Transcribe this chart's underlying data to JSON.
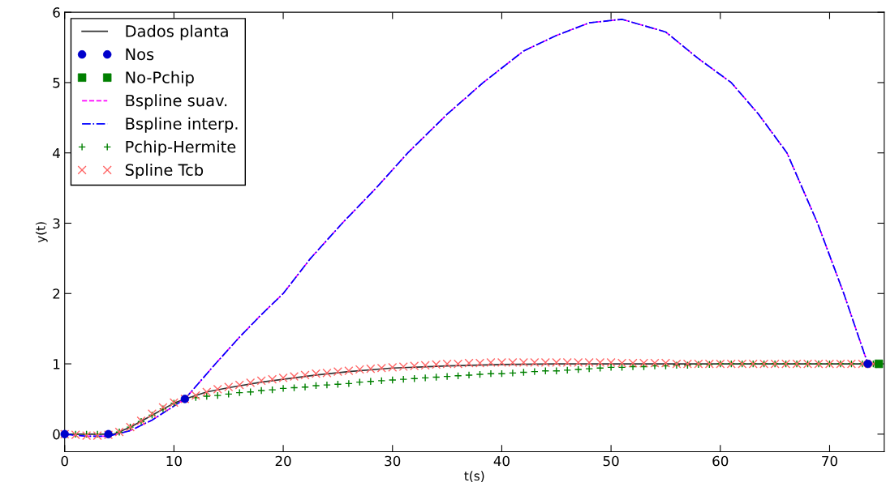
{
  "chart_data": {
    "type": "line",
    "xlabel": "t(s)",
    "ylabel": "y(t)",
    "xlim": [
      0,
      75
    ],
    "ylim": [
      -0.25,
      6
    ],
    "xticks": [
      0,
      10,
      20,
      30,
      40,
      50,
      60,
      70
    ],
    "yticks": [
      0,
      1,
      2,
      3,
      4,
      5,
      6
    ],
    "grid": false,
    "legend": "top left",
    "series": [
      {
        "name": "Dados planta",
        "color": "#333333",
        "line_style": "solid",
        "marker": "none",
        "x": [
          0,
          4.5,
          6,
          8,
          10,
          11,
          13,
          15,
          18,
          20,
          23,
          26,
          30,
          35,
          40,
          45,
          50,
          60,
          74
        ],
        "values": [
          0,
          0,
          0.1,
          0.27,
          0.44,
          0.5,
          0.6,
          0.66,
          0.74,
          0.78,
          0.84,
          0.89,
          0.94,
          0.97,
          0.99,
          1,
          1,
          1,
          1
        ]
      },
      {
        "name": "Nos",
        "type": "scatter",
        "color": "#0000cc",
        "marker": "circle",
        "x": [
          0,
          4,
          11,
          73.5
        ],
        "values": [
          0,
          0,
          0.5,
          1
        ]
      },
      {
        "name": "No-Pchip",
        "type": "scatter",
        "color": "#007f00",
        "marker": "square",
        "x": [
          74.5
        ],
        "values": [
          1
        ]
      },
      {
        "name": "Bspline suav.",
        "color": "#ff00ff",
        "line_style": "dashed",
        "marker": "none",
        "x": [
          0,
          2,
          4,
          6,
          8,
          10,
          11,
          13.8,
          16,
          18,
          20,
          22.5,
          25.4,
          28.5,
          31.4,
          35,
          38.3,
          42,
          45,
          48,
          51,
          55,
          58,
          61,
          63.5,
          66.1,
          68.9,
          71.3,
          73.5
        ],
        "values": [
          0,
          -0.03,
          -0.03,
          0.05,
          0.2,
          0.4,
          0.5,
          1,
          1.38,
          1.7,
          2,
          2.5,
          3,
          3.5,
          4,
          4.55,
          5,
          5.45,
          5.67,
          5.85,
          5.9,
          5.72,
          5.34,
          5,
          4.55,
          4,
          3,
          2,
          1
        ]
      },
      {
        "name": "Bspline interp.",
        "color": "#0000ff",
        "line_style": "dashdot",
        "marker": "none",
        "x": [
          0,
          2,
          4,
          6,
          8,
          10,
          11,
          13.8,
          16,
          18,
          20,
          22.5,
          25.4,
          28.5,
          31.4,
          35,
          38.3,
          42,
          45,
          48,
          51,
          55,
          58,
          61,
          63.5,
          66.1,
          68.9,
          71.3,
          73.5
        ],
        "values": [
          0,
          -0.03,
          -0.03,
          0.05,
          0.2,
          0.4,
          0.5,
          1,
          1.38,
          1.7,
          2,
          2.5,
          3,
          3.5,
          4,
          4.55,
          5,
          5.45,
          5.67,
          5.85,
          5.9,
          5.72,
          5.34,
          5,
          4.55,
          4,
          3,
          2,
          1
        ]
      },
      {
        "name": "Pchip-Hermite",
        "type": "scatter",
        "color": "#008000",
        "marker": "plus",
        "x": [
          1,
          2,
          3,
          5,
          6,
          7,
          8,
          9,
          10,
          12,
          13,
          14,
          15,
          16,
          17,
          18,
          19,
          20,
          21,
          22,
          23,
          24,
          25,
          26,
          27,
          28,
          29,
          30,
          31,
          32,
          33,
          34,
          35,
          36,
          37,
          38,
          39,
          40,
          41,
          42,
          43,
          44,
          45,
          46,
          47,
          48,
          49,
          50,
          51,
          52,
          53,
          54,
          55,
          56,
          57,
          58,
          59,
          60,
          61,
          62,
          63,
          64,
          65,
          66,
          67,
          68,
          69,
          70,
          71,
          72,
          73,
          74
        ],
        "values": [
          0,
          0,
          0,
          0.03,
          0.1,
          0.18,
          0.27,
          0.36,
          0.44,
          0.52,
          0.54,
          0.55,
          0.57,
          0.59,
          0.6,
          0.62,
          0.63,
          0.65,
          0.66,
          0.67,
          0.69,
          0.7,
          0.71,
          0.72,
          0.74,
          0.75,
          0.76,
          0.77,
          0.78,
          0.79,
          0.8,
          0.81,
          0.82,
          0.83,
          0.84,
          0.85,
          0.86,
          0.86,
          0.87,
          0.88,
          0.89,
          0.9,
          0.9,
          0.91,
          0.92,
          0.93,
          0.94,
          0.95,
          0.95,
          0.96,
          0.96,
          0.97,
          0.97,
          0.98,
          0.98,
          0.99,
          0.99,
          1,
          1,
          1,
          1,
          1,
          1,
          1,
          1,
          1,
          1,
          1,
          1,
          1,
          1,
          1
        ]
      },
      {
        "name": "Spline Tcb",
        "type": "scatter",
        "color": "#ff6666",
        "marker": "cross",
        "x": [
          0,
          1,
          2,
          3,
          4,
          5,
          6,
          7,
          8,
          9,
          10,
          11,
          12,
          13,
          14,
          15,
          16,
          17,
          18,
          19,
          20,
          21,
          22,
          23,
          24,
          25,
          26,
          27,
          28,
          29,
          30,
          31,
          32,
          33,
          34,
          35,
          36,
          37,
          38,
          39,
          40,
          41,
          42,
          43,
          44,
          45,
          46,
          47,
          48,
          49,
          50,
          51,
          52,
          53,
          54,
          55,
          56,
          57,
          58,
          59,
          60,
          61,
          62,
          63,
          64,
          65,
          66,
          67,
          68,
          69,
          70,
          71,
          72,
          73,
          74
        ],
        "values": [
          0,
          -0.01,
          -0.02,
          -0.02,
          -0.01,
          0.03,
          0.1,
          0.19,
          0.29,
          0.38,
          0.45,
          0.5,
          0.55,
          0.6,
          0.64,
          0.67,
          0.7,
          0.73,
          0.76,
          0.78,
          0.8,
          0.82,
          0.84,
          0.86,
          0.87,
          0.89,
          0.9,
          0.92,
          0.93,
          0.94,
          0.95,
          0.96,
          0.97,
          0.98,
          0.99,
          1,
          1,
          1.01,
          1.01,
          1.02,
          1.02,
          1.02,
          1.02,
          1.02,
          1.02,
          1.02,
          1.02,
          1.02,
          1.02,
          1.02,
          1.02,
          1.01,
          1.01,
          1.01,
          1.01,
          1.01,
          1,
          1,
          1,
          1,
          1,
          1,
          1,
          1,
          1,
          1,
          1,
          1,
          1,
          1,
          1,
          1,
          1,
          1,
          1
        ]
      }
    ]
  }
}
